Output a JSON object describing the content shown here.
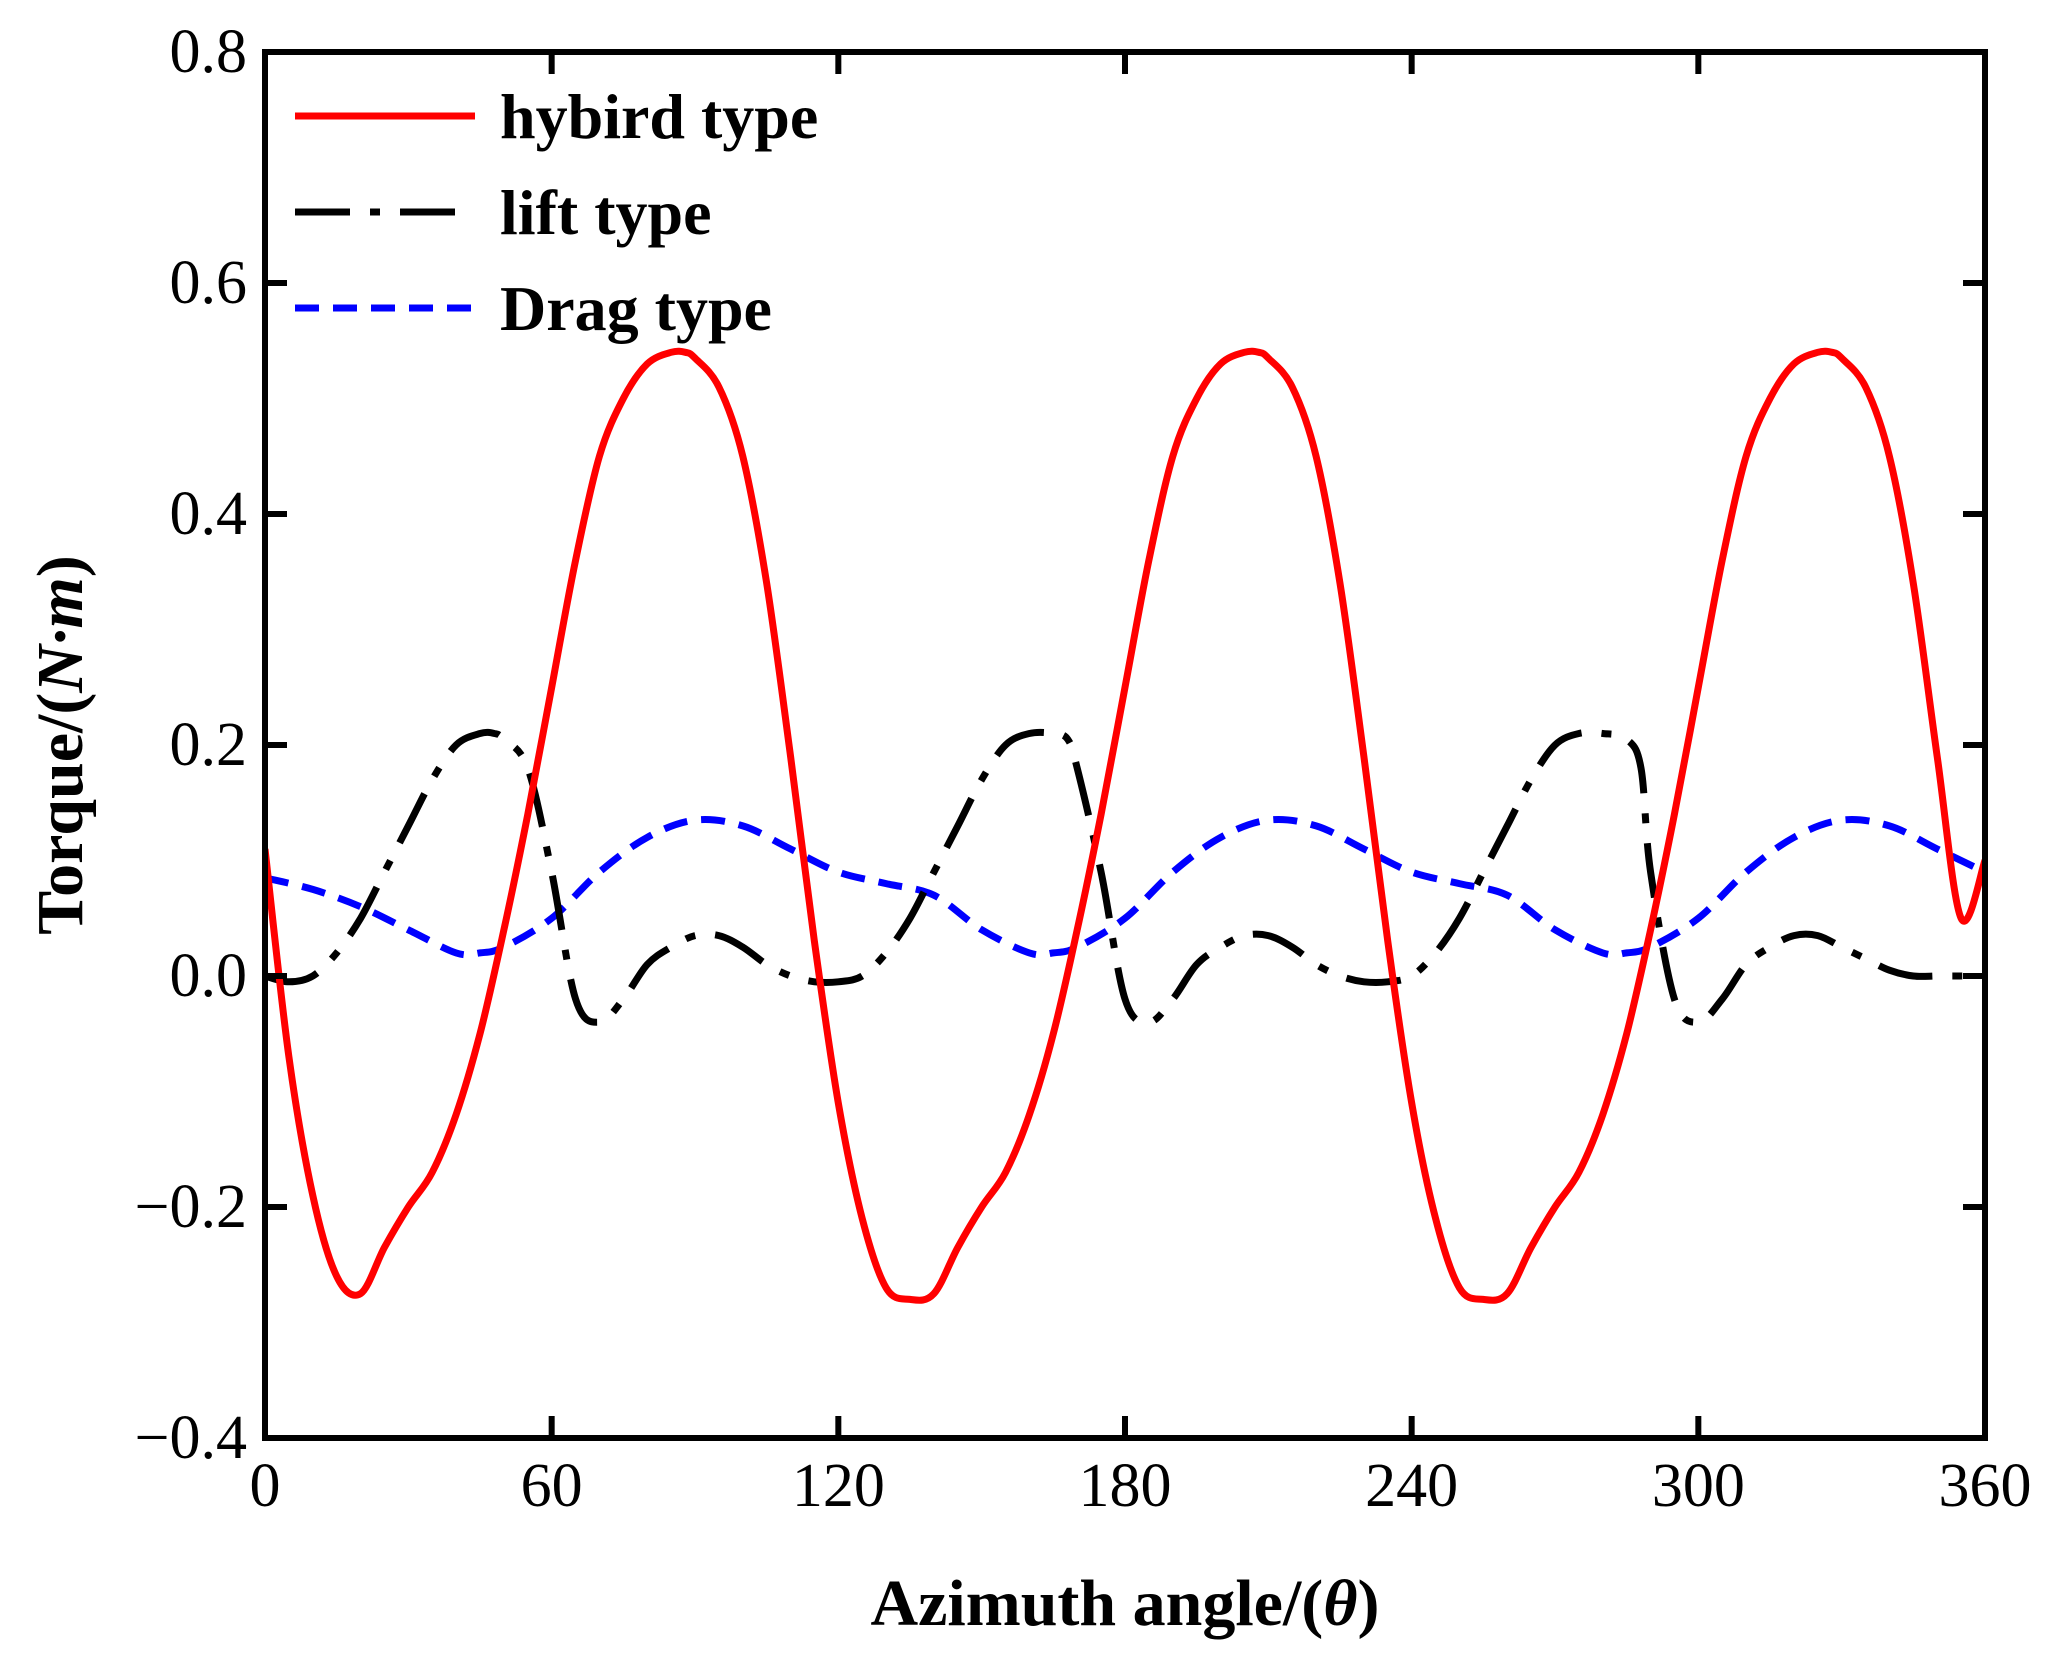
{
  "chart_data": {
    "type": "line",
    "title": "",
    "xlabel": "Azimuth angle/(θ)",
    "xlabel_prefix": "Azimuth angle/(",
    "xlabel_symbol": "θ",
    "xlabel_suffix": ")",
    "ylabel": "Torque/(N·m)",
    "ylabel_prefix": "Torque/(",
    "ylabel_symbol": "N·m",
    "ylabel_suffix": ")",
    "xlim": [
      0,
      360
    ],
    "ylim": [
      -0.4,
      0.8
    ],
    "xticks": [
      0,
      60,
      120,
      180,
      240,
      300,
      360
    ],
    "xtick_labels": [
      "0",
      "60",
      "120",
      "180",
      "240",
      "300",
      "360"
    ],
    "yticks": [
      -0.4,
      -0.2,
      0.0,
      0.2,
      0.4,
      0.6,
      0.8
    ],
    "ytick_labels": [
      "−0.4",
      "−0.2",
      "0.0",
      "0.2",
      "0.4",
      "0.6",
      "0.8"
    ],
    "grid": false,
    "legend_position": "top-left",
    "series": [
      {
        "name": "hybird type",
        "color": "#ff0000",
        "style": "solid",
        "x": [
          0,
          5,
          10,
          15,
          20,
          25,
          30,
          35,
          40,
          45,
          50,
          55,
          60,
          65,
          70,
          75,
          80,
          85,
          88,
          90,
          95,
          100,
          105,
          110,
          115,
          120,
          125,
          130,
          135,
          140,
          145,
          150,
          155,
          160,
          165,
          170,
          175,
          180,
          185,
          190,
          195,
          200,
          205,
          208,
          210,
          215,
          220,
          225,
          230,
          235,
          240,
          245,
          250,
          255,
          260,
          265,
          270,
          275,
          280,
          285,
          290,
          295,
          300,
          305,
          310,
          315,
          320,
          325,
          328,
          330,
          335,
          340,
          345,
          350,
          355,
          360
        ],
        "values": [
          0.11,
          -0.07,
          -0.19,
          -0.26,
          -0.275,
          -0.235,
          -0.2,
          -0.17,
          -0.12,
          -0.05,
          0.04,
          0.14,
          0.25,
          0.36,
          0.45,
          0.5,
          0.53,
          0.54,
          0.54,
          0.535,
          0.51,
          0.45,
          0.34,
          0.19,
          0.03,
          -0.11,
          -0.21,
          -0.27,
          -0.28,
          -0.275,
          -0.235,
          -0.2,
          -0.17,
          -0.12,
          -0.05,
          0.04,
          0.14,
          0.25,
          0.36,
          0.45,
          0.5,
          0.53,
          0.54,
          0.54,
          0.535,
          0.51,
          0.45,
          0.34,
          0.19,
          0.03,
          -0.11,
          -0.21,
          -0.27,
          -0.28,
          -0.275,
          -0.235,
          -0.2,
          -0.17,
          -0.12,
          -0.05,
          0.04,
          0.14,
          0.25,
          0.36,
          0.45,
          0.5,
          0.53,
          0.54,
          0.54,
          0.535,
          0.51,
          0.45,
          0.34,
          0.19,
          0.05,
          0.1
        ]
      },
      {
        "name": "lift type",
        "color": "#000000",
        "style": "dashdot",
        "x": [
          0,
          5,
          10,
          15,
          20,
          25,
          30,
          35,
          40,
          45,
          48,
          50,
          55,
          60,
          65,
          70,
          75,
          80,
          85,
          90,
          95,
          100,
          105,
          110,
          115,
          120,
          125,
          130,
          135,
          140,
          145,
          150,
          155,
          160,
          165,
          168,
          170,
          175,
          180,
          185,
          190,
          195,
          200,
          205,
          210,
          215,
          220,
          225,
          230,
          235,
          240,
          245,
          250,
          255,
          260,
          265,
          270,
          275,
          280,
          285,
          288,
          290,
          295,
          300,
          305,
          310,
          315,
          320,
          325,
          330,
          335,
          340,
          345,
          350,
          355,
          360
        ],
        "values": [
          0.0,
          -0.005,
          0.0,
          0.02,
          0.05,
          0.09,
          0.13,
          0.17,
          0.2,
          0.21,
          0.21,
          0.205,
          0.18,
          0.09,
          -0.02,
          -0.04,
          -0.02,
          0.01,
          0.025,
          0.035,
          0.035,
          0.025,
          0.01,
          0.0,
          -0.005,
          -0.005,
          0.0,
          0.02,
          0.05,
          0.09,
          0.13,
          0.17,
          0.2,
          0.21,
          0.21,
          0.205,
          0.18,
          0.09,
          -0.02,
          -0.04,
          -0.02,
          0.01,
          0.025,
          0.035,
          0.035,
          0.025,
          0.01,
          0.0,
          -0.005,
          -0.005,
          0.0,
          0.02,
          0.05,
          0.09,
          0.13,
          0.17,
          0.2,
          0.21,
          0.21,
          0.205,
          0.18,
          0.09,
          -0.02,
          -0.04,
          -0.02,
          0.01,
          0.025,
          0.035,
          0.035,
          0.025,
          0.015,
          0.005,
          0.0,
          0.0,
          0.0,
          0.0
        ]
      },
      {
        "name": "Drag type",
        "color": "#0000ff",
        "style": "dashed",
        "x": [
          0,
          10,
          20,
          30,
          40,
          45,
          50,
          60,
          70,
          80,
          90,
          100,
          110,
          120,
          130,
          140,
          150,
          160,
          165,
          170,
          180,
          190,
          200,
          210,
          220,
          230,
          240,
          250,
          260,
          270,
          280,
          285,
          290,
          300,
          310,
          320,
          330,
          340,
          350,
          360
        ],
        "values": [
          0.085,
          0.075,
          0.06,
          0.04,
          0.02,
          0.02,
          0.025,
          0.05,
          0.09,
          0.12,
          0.135,
          0.13,
          0.11,
          0.09,
          0.08,
          0.07,
          0.04,
          0.02,
          0.02,
          0.025,
          0.05,
          0.09,
          0.12,
          0.135,
          0.13,
          0.11,
          0.09,
          0.08,
          0.07,
          0.04,
          0.02,
          0.02,
          0.025,
          0.05,
          0.09,
          0.12,
          0.135,
          0.13,
          0.11,
          0.09
        ]
      }
    ]
  }
}
